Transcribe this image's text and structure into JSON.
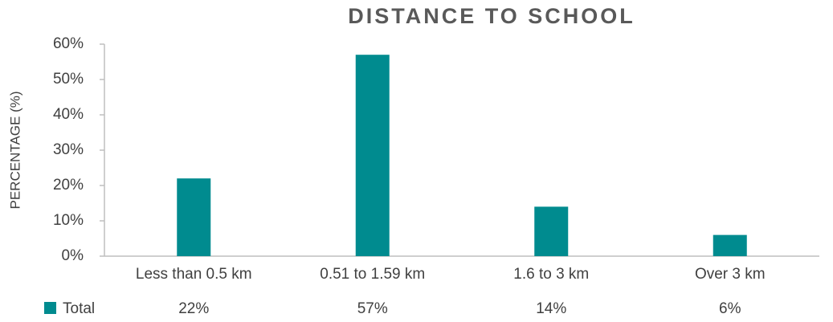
{
  "chart_data": {
    "type": "bar",
    "title": "DISTANCE TO SCHOOL",
    "y_label": "PERCENTAGE (%)",
    "categories": [
      "Less than 0.5 km",
      "0.51 to 1.59 km",
      "1.6 to 3 km",
      "Over 3 km"
    ],
    "series": [
      {
        "name": "Total",
        "color": "#008b8f",
        "values": [
          22,
          57,
          14,
          6
        ],
        "value_labels": [
          "22%",
          "57%",
          "14%",
          "6%"
        ]
      }
    ],
    "ylim": [
      0,
      60
    ],
    "yticks": [
      {
        "value": 0,
        "label": "0%"
      },
      {
        "value": 10,
        "label": "10%"
      },
      {
        "value": 20,
        "label": "20%"
      },
      {
        "value": 30,
        "label": "30%"
      },
      {
        "value": 40,
        "label": "40%"
      },
      {
        "value": 50,
        "label": "50%"
      },
      {
        "value": 60,
        "label": "60%"
      }
    ]
  }
}
